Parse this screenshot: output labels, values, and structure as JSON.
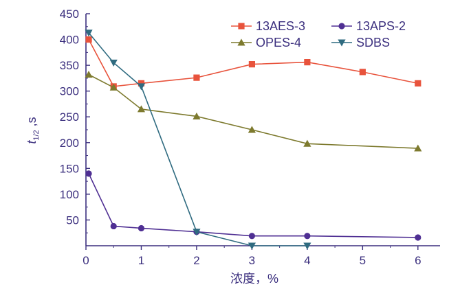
{
  "chart_data": {
    "type": "line",
    "title": "",
    "xlabel": "浓度，%",
    "ylabel_main": "t",
    "ylabel_sub": "1/2",
    "ylabel_suffix": " ,s",
    "xlim": [
      0,
      6.4
    ],
    "ylim": [
      0,
      450
    ],
    "x_ticks": [
      0,
      1,
      2,
      3,
      4,
      5,
      6
    ],
    "y_ticks": [
      50,
      100,
      150,
      200,
      250,
      300,
      350,
      400,
      450
    ],
    "grid": false,
    "legend_position": "top-right",
    "series": [
      {
        "name": "13AES-3",
        "color": "#e8533c",
        "marker": "square",
        "x": [
          0.05,
          0.5,
          1,
          2,
          3,
          4,
          5,
          6
        ],
        "y": [
          400,
          309,
          315,
          326,
          352,
          356,
          337,
          315
        ]
      },
      {
        "name": "13APS-2",
        "color": "#4f2f93",
        "marker": "circle",
        "x": [
          0.05,
          0.5,
          1,
          2,
          3,
          4,
          6
        ],
        "y": [
          140,
          38,
          34,
          27,
          19,
          19,
          16
        ]
      },
      {
        "name": "OPES-4",
        "color": "#7d7a2e",
        "marker": "triangle-up",
        "x": [
          0.05,
          0.5,
          1,
          2,
          3,
          4,
          6
        ],
        "y": [
          332,
          307,
          265,
          251,
          225,
          198,
          189
        ]
      },
      {
        "name": "SDBS",
        "color": "#2f6b80",
        "marker": "triangle-down",
        "x": [
          0.05,
          0.5,
          1,
          2,
          3,
          4
        ],
        "y": [
          413,
          355,
          309,
          27,
          0,
          0
        ]
      }
    ]
  }
}
